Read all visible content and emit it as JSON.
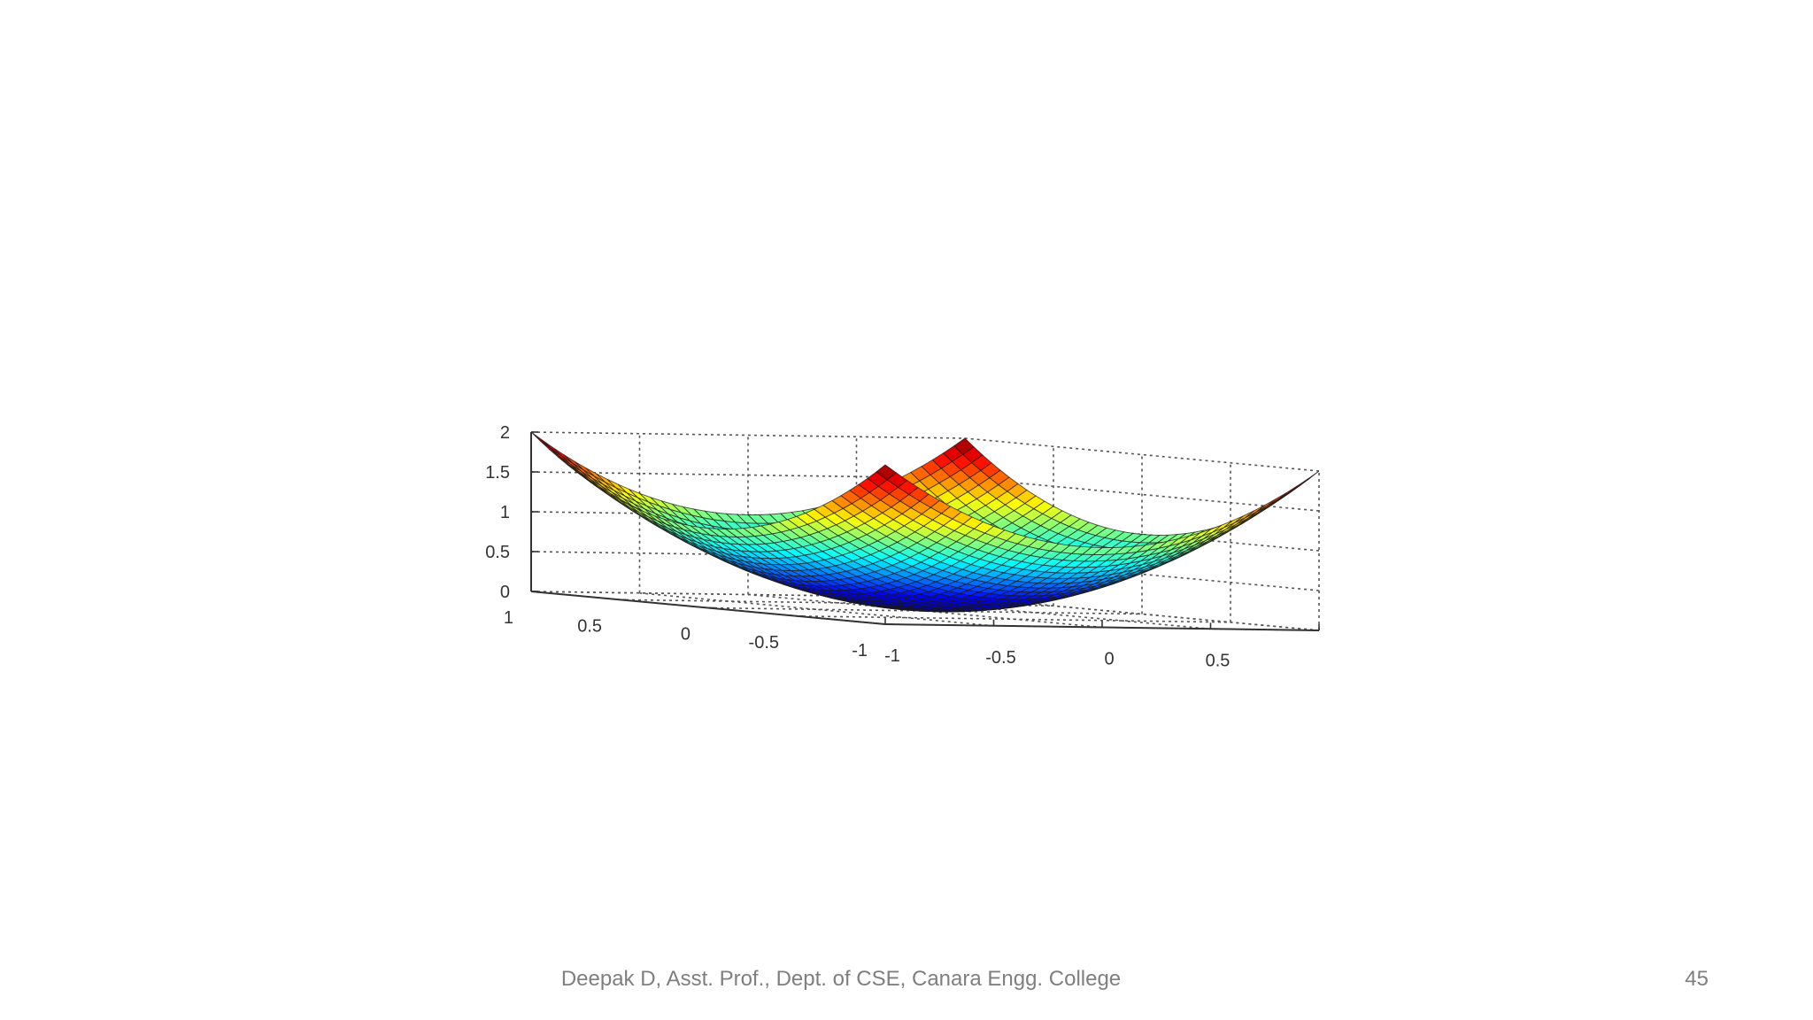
{
  "slide": {
    "footer_text": "Deepak D, Asst. Prof., Dept. of CSE, Canara Engg. College",
    "page_number": "45"
  },
  "chart_data": {
    "type": "surface",
    "function": "z = x^2 + y^2",
    "x_range": [
      -1,
      1
    ],
    "y_range": [
      -1,
      1
    ],
    "z_range": [
      0,
      2
    ],
    "grid_resolution": 41,
    "grid": true,
    "colormap": "jet",
    "xticks": [
      "-1",
      "-0.5",
      "0",
      "0.5"
    ],
    "yticks": [
      "1",
      "0.5",
      "0",
      "-0.5",
      "-1"
    ],
    "zticks": [
      "0",
      "0.5",
      "1",
      "1.5",
      "2"
    ],
    "corner_values": [
      {
        "x": -1,
        "y": -1,
        "z": 2
      },
      {
        "x": 1,
        "y": -1,
        "z": 2
      },
      {
        "x": -1,
        "y": 1,
        "z": 2
      },
      {
        "x": 1,
        "y": 1,
        "z": 2
      }
    ],
    "minimum": {
      "x": 0,
      "y": 0,
      "z": 0
    }
  }
}
